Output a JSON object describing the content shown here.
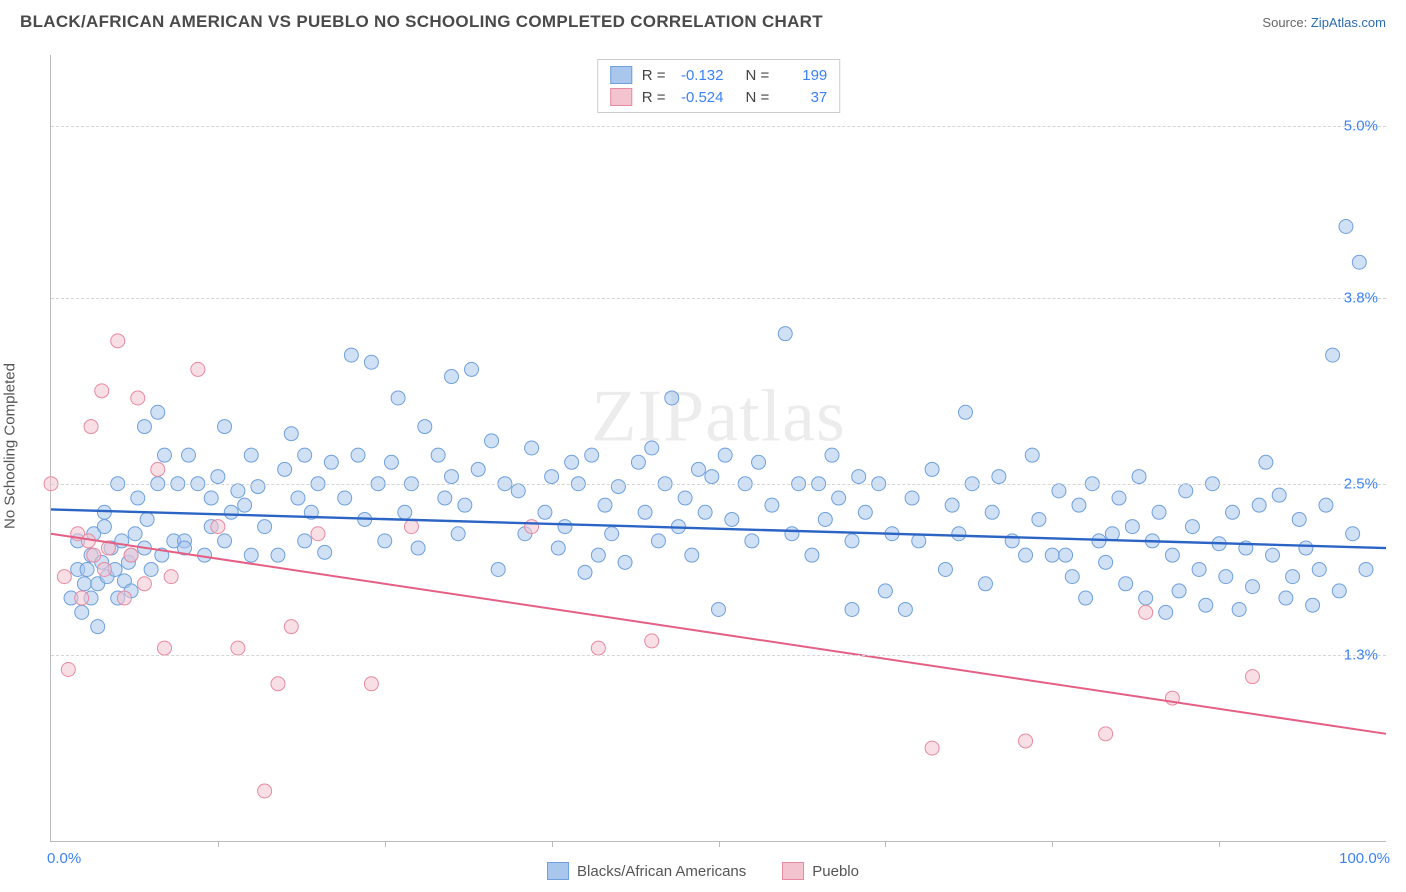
{
  "title": "BLACK/AFRICAN AMERICAN VS PUEBLO NO SCHOOLING COMPLETED CORRELATION CHART",
  "source_label": "Source:",
  "source_name": "ZipAtlas.com",
  "y_axis_title": "No Schooling Completed",
  "watermark": "ZIPatlas",
  "chart": {
    "type": "scatter",
    "xlim": [
      0,
      100
    ],
    "ylim": [
      0,
      5.5
    ],
    "y_ticks": [
      {
        "v": 1.3,
        "label": "1.3%"
      },
      {
        "v": 2.5,
        "label": "2.5%"
      },
      {
        "v": 3.8,
        "label": "3.8%"
      },
      {
        "v": 5.0,
        "label": "5.0%"
      }
    ],
    "x_ticks_minor": [
      12.5,
      25,
      37.5,
      50,
      62.5,
      75,
      87.5
    ],
    "x_tick_labels": [
      {
        "v": 0,
        "label": "0.0%"
      },
      {
        "v": 100,
        "label": "100.0%"
      }
    ],
    "background_color": "#ffffff",
    "grid_color": "#d5d5d5",
    "marker_radius": 7,
    "marker_opacity": 0.55,
    "series": [
      {
        "name": "Blacks/African Americans",
        "color_fill": "#a9c6ec",
        "color_stroke": "#6fa0dc",
        "trend_color": "#2b64c4",
        "trend_width": 2.4,
        "r": -0.132,
        "n": 199,
        "trend": {
          "x1": 0,
          "y1": 2.32,
          "x2": 100,
          "y2": 2.05
        },
        "points": [
          [
            1.5,
            1.7
          ],
          [
            2,
            1.9
          ],
          [
            2,
            2.1
          ],
          [
            2.3,
            1.6
          ],
          [
            2.5,
            1.8
          ],
          [
            2.7,
            1.9
          ],
          [
            3,
            1.7
          ],
          [
            3,
            2.0
          ],
          [
            3.2,
            2.15
          ],
          [
            3.5,
            1.8
          ],
          [
            3.5,
            1.5
          ],
          [
            3.8,
            1.95
          ],
          [
            4,
            2.2
          ],
          [
            4,
            2.3
          ],
          [
            4.2,
            1.85
          ],
          [
            4.5,
            2.05
          ],
          [
            4.8,
            1.9
          ],
          [
            5,
            1.7
          ],
          [
            5,
            2.5
          ],
          [
            5.3,
            2.1
          ],
          [
            5.5,
            1.82
          ],
          [
            5.8,
            1.95
          ],
          [
            6,
            2.0
          ],
          [
            6,
            1.75
          ],
          [
            6.3,
            2.15
          ],
          [
            6.5,
            2.4
          ],
          [
            7,
            2.9
          ],
          [
            7,
            2.05
          ],
          [
            7.2,
            2.25
          ],
          [
            7.5,
            1.9
          ],
          [
            8,
            2.5
          ],
          [
            8,
            3.0
          ],
          [
            8.3,
            2.0
          ],
          [
            8.5,
            2.7
          ],
          [
            9.2,
            2.1
          ],
          [
            9.5,
            2.5
          ],
          [
            10,
            2.1
          ],
          [
            10,
            2.05
          ],
          [
            10.3,
            2.7
          ],
          [
            11,
            2.5
          ],
          [
            11.5,
            2.0
          ],
          [
            12,
            2.4
          ],
          [
            12,
            2.2
          ],
          [
            12.5,
            2.55
          ],
          [
            13,
            2.1
          ],
          [
            13,
            2.9
          ],
          [
            13.5,
            2.3
          ],
          [
            14,
            2.45
          ],
          [
            14.5,
            2.35
          ],
          [
            15,
            2.0
          ],
          [
            15,
            2.7
          ],
          [
            15.5,
            2.48
          ],
          [
            16,
            2.2
          ],
          [
            17,
            2.0
          ],
          [
            17.5,
            2.6
          ],
          [
            18,
            2.85
          ],
          [
            18.5,
            2.4
          ],
          [
            19,
            2.1
          ],
          [
            19,
            2.7
          ],
          [
            19.5,
            2.3
          ],
          [
            20,
            2.5
          ],
          [
            20.5,
            2.02
          ],
          [
            21,
            2.65
          ],
          [
            22,
            2.4
          ],
          [
            22.5,
            3.4
          ],
          [
            23,
            2.7
          ],
          [
            23.5,
            2.25
          ],
          [
            24,
            3.35
          ],
          [
            24.5,
            2.5
          ],
          [
            25,
            2.1
          ],
          [
            25.5,
            2.65
          ],
          [
            26,
            3.1
          ],
          [
            26.5,
            2.3
          ],
          [
            27,
            2.5
          ],
          [
            27.5,
            2.05
          ],
          [
            28,
            2.9
          ],
          [
            29,
            2.7
          ],
          [
            29.5,
            2.4
          ],
          [
            30,
            2.55
          ],
          [
            30,
            3.25
          ],
          [
            30.5,
            2.15
          ],
          [
            31,
            2.35
          ],
          [
            31.5,
            3.3
          ],
          [
            32,
            2.6
          ],
          [
            33,
            2.8
          ],
          [
            33.5,
            1.9
          ],
          [
            34,
            2.5
          ],
          [
            35,
            2.45
          ],
          [
            35.5,
            2.15
          ],
          [
            36,
            2.75
          ],
          [
            37,
            2.3
          ],
          [
            37.5,
            2.55
          ],
          [
            38,
            2.05
          ],
          [
            38.5,
            2.2
          ],
          [
            39,
            2.65
          ],
          [
            39.5,
            2.5
          ],
          [
            40,
            1.88
          ],
          [
            40.5,
            2.7
          ],
          [
            41,
            2.0
          ],
          [
            41.5,
            2.35
          ],
          [
            42,
            2.15
          ],
          [
            42.5,
            2.48
          ],
          [
            43,
            1.95
          ],
          [
            44,
            2.65
          ],
          [
            44.5,
            2.3
          ],
          [
            45,
            2.75
          ],
          [
            45.5,
            2.1
          ],
          [
            46,
            2.5
          ],
          [
            46.5,
            3.1
          ],
          [
            47,
            2.2
          ],
          [
            47.5,
            2.4
          ],
          [
            48,
            2.0
          ],
          [
            48.5,
            2.6
          ],
          [
            49,
            2.3
          ],
          [
            49.5,
            2.55
          ],
          [
            50,
            1.62
          ],
          [
            50.5,
            2.7
          ],
          [
            51,
            2.25
          ],
          [
            52,
            2.5
          ],
          [
            52.5,
            2.1
          ],
          [
            53,
            2.65
          ],
          [
            54,
            2.35
          ],
          [
            55,
            3.55
          ],
          [
            55.5,
            2.15
          ],
          [
            56,
            2.5
          ],
          [
            57,
            2.0
          ],
          [
            57.5,
            2.5
          ],
          [
            58,
            2.25
          ],
          [
            58.5,
            2.7
          ],
          [
            59,
            2.4
          ],
          [
            60,
            1.62
          ],
          [
            60,
            2.1
          ],
          [
            60.5,
            2.55
          ],
          [
            61,
            2.3
          ],
          [
            62,
            2.5
          ],
          [
            62.5,
            1.75
          ],
          [
            63,
            2.15
          ],
          [
            64,
            1.62
          ],
          [
            64.5,
            2.4
          ],
          [
            65,
            2.1
          ],
          [
            66,
            2.6
          ],
          [
            67,
            1.9
          ],
          [
            67.5,
            2.35
          ],
          [
            68,
            2.15
          ],
          [
            68.5,
            3.0
          ],
          [
            69,
            2.5
          ],
          [
            70,
            1.8
          ],
          [
            70.5,
            2.3
          ],
          [
            71,
            2.55
          ],
          [
            72,
            2.1
          ],
          [
            73,
            2.0
          ],
          [
            73.5,
            2.7
          ],
          [
            74,
            2.25
          ],
          [
            75,
            2.0
          ],
          [
            75.5,
            2.45
          ],
          [
            76,
            2.0
          ],
          [
            76.5,
            1.85
          ],
          [
            77,
            2.35
          ],
          [
            77.5,
            1.7
          ],
          [
            78,
            2.5
          ],
          [
            78.5,
            2.1
          ],
          [
            79,
            1.95
          ],
          [
            79.5,
            2.15
          ],
          [
            80,
            2.4
          ],
          [
            80.5,
            1.8
          ],
          [
            81,
            2.2
          ],
          [
            81.5,
            2.55
          ],
          [
            82,
            1.7
          ],
          [
            82.5,
            2.1
          ],
          [
            83,
            2.3
          ],
          [
            83.5,
            1.6
          ],
          [
            84,
            2.0
          ],
          [
            84.5,
            1.75
          ],
          [
            85,
            2.45
          ],
          [
            85.5,
            2.2
          ],
          [
            86,
            1.9
          ],
          [
            86.5,
            1.65
          ],
          [
            87,
            2.5
          ],
          [
            87.5,
            2.08
          ],
          [
            88,
            1.85
          ],
          [
            88.5,
            2.3
          ],
          [
            89,
            1.62
          ],
          [
            89.5,
            2.05
          ],
          [
            90,
            1.78
          ],
          [
            90.5,
            2.35
          ],
          [
            91,
            2.65
          ],
          [
            91.5,
            2.0
          ],
          [
            92,
            2.42
          ],
          [
            92.5,
            1.7
          ],
          [
            93,
            1.85
          ],
          [
            93.5,
            2.25
          ],
          [
            94,
            2.05
          ],
          [
            94.5,
            1.65
          ],
          [
            95,
            1.9
          ],
          [
            95.5,
            2.35
          ],
          [
            96,
            3.4
          ],
          [
            96.5,
            1.75
          ],
          [
            97,
            4.3
          ],
          [
            97.5,
            2.15
          ],
          [
            98,
            4.05
          ],
          [
            98.5,
            1.9
          ]
        ]
      },
      {
        "name": "Pueblo",
        "color_fill": "#f3c4cf",
        "color_stroke": "#e88aa1",
        "trend_color": "#e45f83",
        "trend_width": 2.0,
        "r": -0.524,
        "n": 37,
        "trend": {
          "x1": 0,
          "y1": 2.15,
          "x2": 100,
          "y2": 0.75
        },
        "points": [
          [
            0,
            2.5
          ],
          [
            1,
            1.85
          ],
          [
            1.3,
            1.2
          ],
          [
            2,
            2.15
          ],
          [
            2.3,
            1.7
          ],
          [
            2.8,
            2.1
          ],
          [
            3,
            2.9
          ],
          [
            3.2,
            2.0
          ],
          [
            3.8,
            3.15
          ],
          [
            4,
            1.9
          ],
          [
            4.3,
            2.05
          ],
          [
            5,
            3.5
          ],
          [
            5.5,
            1.7
          ],
          [
            6,
            2.0
          ],
          [
            6.5,
            3.1
          ],
          [
            7,
            1.8
          ],
          [
            8,
            2.6
          ],
          [
            8.5,
            1.35
          ],
          [
            9,
            1.85
          ],
          [
            11,
            3.3
          ],
          [
            12.5,
            2.2
          ],
          [
            14,
            1.35
          ],
          [
            16,
            0.35
          ],
          [
            17,
            1.1
          ],
          [
            18,
            1.5
          ],
          [
            20,
            2.15
          ],
          [
            24,
            1.1
          ],
          [
            27,
            2.2
          ],
          [
            36,
            2.2
          ],
          [
            41,
            1.35
          ],
          [
            45,
            1.4
          ],
          [
            66,
            0.65
          ],
          [
            73,
            0.7
          ],
          [
            79,
            0.75
          ],
          [
            82,
            1.6
          ],
          [
            84,
            1.0
          ],
          [
            90,
            1.15
          ]
        ]
      }
    ]
  },
  "legend_top": {
    "r_label": "R =",
    "n_label": "N ="
  },
  "legend_bottom": [
    {
      "label": "Blacks/African Americans",
      "fill": "#a9c6ec",
      "stroke": "#6fa0dc"
    },
    {
      "label": "Pueblo",
      "fill": "#f3c4cf",
      "stroke": "#e88aa1"
    }
  ]
}
